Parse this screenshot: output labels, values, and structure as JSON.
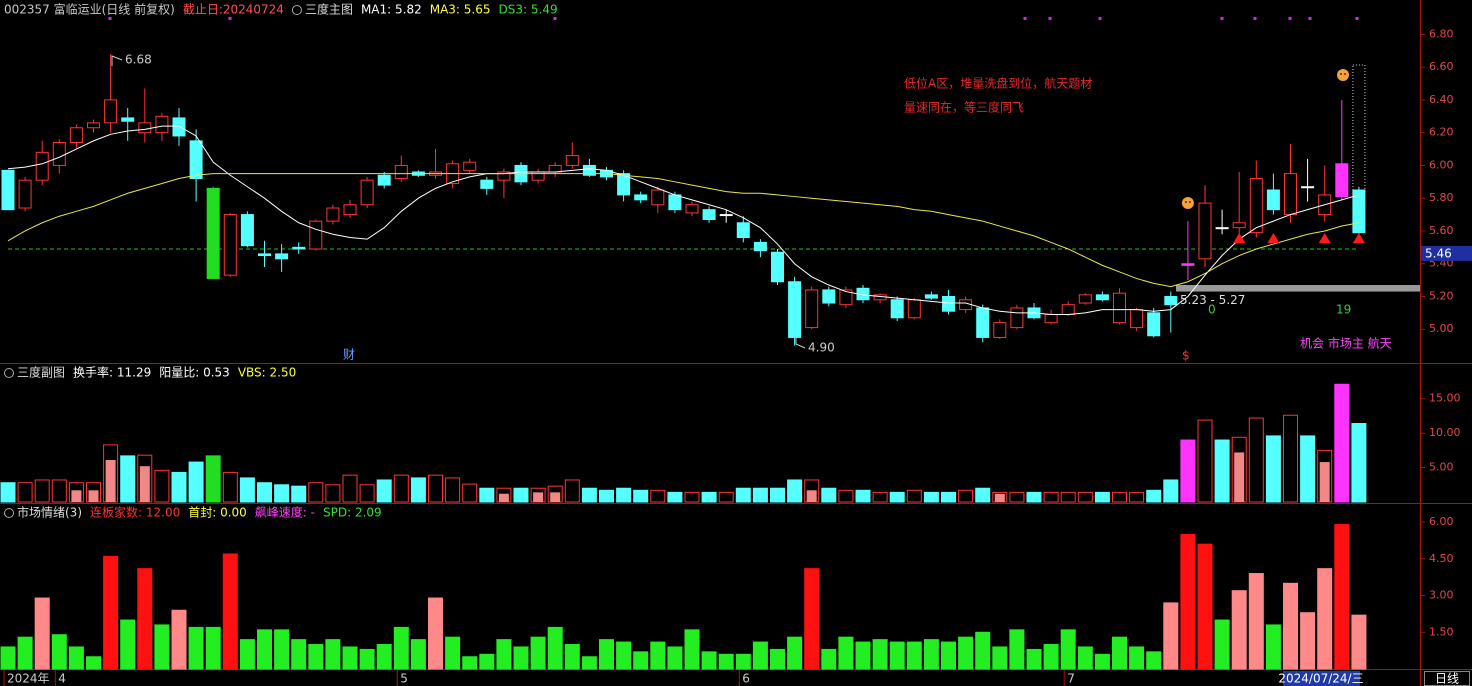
{
  "chart_data": [
    {
      "type": "candlestick",
      "header": [
        {
          "text": "002357 富临运业(日线 前复权)",
          "color": "#c8c8c8"
        },
        {
          "text": "截止日:20240724",
          "color": "#ff5050"
        },
        {
          "text": "三度主图",
          "color": "#dddddd"
        },
        {
          "text": "MA1: 5.82",
          "color": "#ffffff"
        },
        {
          "text": "MA3: 5.65",
          "color": "#ffff30"
        },
        {
          "text": "DS3: 5.49",
          "color": "#30e030"
        }
      ],
      "open": [
        5.97,
        5.74,
        5.91,
        6.0,
        6.14,
        6.23,
        6.26,
        6.29,
        6.2,
        6.2,
        6.29,
        6.15,
        5.86,
        5.33,
        5.7,
        5.46,
        5.46,
        5.5,
        5.49,
        5.66,
        5.7,
        5.76,
        5.94,
        5.92,
        5.96,
        5.94,
        5.89,
        5.97,
        5.91,
        5.91,
        6.0,
        5.91,
        5.96,
        6.0,
        6.0,
        5.97,
        5.95,
        5.82,
        5.76,
        5.82,
        5.71,
        5.73,
        5.7,
        5.65,
        5.53,
        5.47,
        5.29,
        5.01,
        5.24,
        5.15,
        5.25,
        5.18,
        5.18,
        5.07,
        5.21,
        5.2,
        5.12,
        5.13,
        4.95,
        5.01,
        5.13,
        5.04,
        5.09,
        5.16,
        5.21,
        5.04,
        5.01,
        5.1,
        5.2,
        5.39,
        5.43,
        5.62,
        5.62,
        5.59,
        5.85,
        5.7,
        5.87,
        5.7,
        5.81,
        5.85
      ],
      "high": [
        5.97,
        5.93,
        6.15,
        6.16,
        6.25,
        6.28,
        6.68,
        6.35,
        6.47,
        6.32,
        6.35,
        6.22,
        5.87,
        5.71,
        5.72,
        5.54,
        5.52,
        5.53,
        5.67,
        5.76,
        5.79,
        5.93,
        5.96,
        6.06,
        5.97,
        6.1,
        6.03,
        6.04,
        5.93,
        5.98,
        6.02,
        5.98,
        6.02,
        6.14,
        6.04,
        5.99,
        5.97,
        5.84,
        5.87,
        5.84,
        5.78,
        5.75,
        5.73,
        5.69,
        5.55,
        5.49,
        5.32,
        5.26,
        5.26,
        5.26,
        5.27,
        5.22,
        5.2,
        5.19,
        5.23,
        5.24,
        5.2,
        5.15,
        5.06,
        5.15,
        5.16,
        5.12,
        5.17,
        5.22,
        5.23,
        5.25,
        5.13,
        5.13,
        5.23,
        5.66,
        5.88,
        5.73,
        5.96,
        6.03,
        5.95,
        6.13,
        6.04,
        6.0,
        6.4,
        5.87
      ],
      "low": [
        5.73,
        5.72,
        5.88,
        5.95,
        6.1,
        6.2,
        6.2,
        6.15,
        6.14,
        6.15,
        6.12,
        5.78,
        5.31,
        5.32,
        5.5,
        5.38,
        5.35,
        5.46,
        5.48,
        5.64,
        5.68,
        5.74,
        5.86,
        5.9,
        5.93,
        5.92,
        5.86,
        5.95,
        5.82,
        5.8,
        5.88,
        5.89,
        5.93,
        5.98,
        5.93,
        5.91,
        5.78,
        5.77,
        5.71,
        5.71,
        5.69,
        5.65,
        5.65,
        5.53,
        5.44,
        5.27,
        4.9,
        5.0,
        5.14,
        5.13,
        5.16,
        5.16,
        5.05,
        5.06,
        5.18,
        5.09,
        5.1,
        4.92,
        4.94,
        5.0,
        5.06,
        5.03,
        5.08,
        5.15,
        5.17,
        5.03,
        4.99,
        4.95,
        4.98,
        5.3,
        5.38,
        5.58,
        5.58,
        5.56,
        5.7,
        5.65,
        5.78,
        5.66,
        5.79,
        5.58
      ],
      "close": [
        5.73,
        5.91,
        6.08,
        6.14,
        6.23,
        6.26,
        6.4,
        6.27,
        6.26,
        6.3,
        6.18,
        5.92,
        5.31,
        5.7,
        5.51,
        5.45,
        5.43,
        5.49,
        5.66,
        5.74,
        5.76,
        5.91,
        5.88,
        6.0,
        5.94,
        5.96,
        6.01,
        6.02,
        5.86,
        5.96,
        5.9,
        5.96,
        6.0,
        6.06,
        5.94,
        5.93,
        5.82,
        5.79,
        5.85,
        5.73,
        5.76,
        5.67,
        5.7,
        5.56,
        5.48,
        5.29,
        4.95,
        5.24,
        5.16,
        5.24,
        5.18,
        5.21,
        5.07,
        5.18,
        5.19,
        5.11,
        5.18,
        4.95,
        5.04,
        5.13,
        5.07,
        5.09,
        5.15,
        5.21,
        5.18,
        5.22,
        5.12,
        4.96,
        5.15,
        5.4,
        5.77,
        5.62,
        5.65,
        5.92,
        5.73,
        5.95,
        5.87,
        5.82,
        6.01,
        5.59
      ],
      "colors": [
        "#5ff",
        "#f33",
        "#f33",
        "#f33",
        "#f33",
        "#f33",
        "#f33",
        "#5ff",
        "#f33",
        "#f33",
        "#5ff",
        "#5ff",
        "#2d2",
        "#f33",
        "#5ff",
        "#5ff",
        "#5ff",
        "#5ff",
        "#f33",
        "#f33",
        "#f33",
        "#f33",
        "#5ff",
        "#f33",
        "#5ff",
        "#f33",
        "#f33",
        "#f33",
        "#5ff",
        "#f33",
        "#5ff",
        "#f33",
        "#f33",
        "#f33",
        "#5ff",
        "#5ff",
        "#5ff",
        "#5ff",
        "#f33",
        "#5ff",
        "#f33",
        "#5ff",
        "#fff",
        "#5ff",
        "#5ff",
        "#5ff",
        "#5ff",
        "#f33",
        "#5ff",
        "#f33",
        "#5ff",
        "#f33",
        "#5ff",
        "#f33",
        "#5ff",
        "#5ff",
        "#f33",
        "#5ff",
        "#f33",
        "#f33",
        "#5ff",
        "#f33",
        "#f33",
        "#f33",
        "#5ff",
        "#f33",
        "#f33",
        "#5ff",
        "#5ff",
        "#f3f",
        "#f33",
        "#fff",
        "#f33",
        "#f33",
        "#5ff",
        "#f33",
        "#fff",
        "#f33",
        "#f3f",
        "#5ff"
      ],
      "hollow_color": "#f33",
      "series": [
        {
          "color": "#ffffff",
          "values": [
            5.98,
            5.99,
            6.01,
            6.05,
            6.1,
            6.15,
            6.19,
            6.21,
            6.22,
            6.24,
            6.24,
            6.18,
            6.02,
            5.94,
            5.87,
            5.8,
            5.72,
            5.65,
            5.61,
            5.58,
            5.56,
            5.55,
            5.62,
            5.72,
            5.8,
            5.86,
            5.9,
            5.93,
            5.95,
            5.95,
            5.96,
            5.96,
            5.96,
            5.97,
            5.98,
            5.97,
            5.94,
            5.9,
            5.86,
            5.82,
            5.79,
            5.76,
            5.73,
            5.68,
            5.62,
            5.52,
            5.4,
            5.32,
            5.27,
            5.23,
            5.21,
            5.2,
            5.19,
            5.18,
            5.17,
            5.16,
            5.16,
            5.13,
            5.11,
            5.1,
            5.1,
            5.09,
            5.09,
            5.1,
            5.12,
            5.12,
            5.12,
            5.11,
            5.12,
            5.2,
            5.33,
            5.45,
            5.55,
            5.62,
            5.66,
            5.7,
            5.73,
            5.76,
            5.79,
            5.82
          ]
        },
        {
          "color": "#e8e840",
          "values": [
            5.54,
            5.6,
            5.65,
            5.69,
            5.72,
            5.75,
            5.79,
            5.83,
            5.86,
            5.89,
            5.92,
            5.94,
            5.95,
            5.95,
            5.95,
            5.95,
            5.95,
            5.95,
            5.95,
            5.95,
            5.95,
            5.95,
            5.95,
            5.95,
            5.95,
            5.95,
            5.95,
            5.95,
            5.95,
            5.95,
            5.95,
            5.95,
            5.95,
            5.95,
            5.95,
            5.95,
            5.94,
            5.93,
            5.92,
            5.9,
            5.88,
            5.86,
            5.84,
            5.83,
            5.83,
            5.82,
            5.81,
            5.8,
            5.79,
            5.78,
            5.77,
            5.76,
            5.75,
            5.73,
            5.72,
            5.7,
            5.68,
            5.66,
            5.63,
            5.6,
            5.57,
            5.53,
            5.49,
            5.44,
            5.39,
            5.35,
            5.31,
            5.28,
            5.26,
            5.29,
            5.34,
            5.4,
            5.45,
            5.49,
            5.52,
            5.55,
            5.58,
            5.6,
            5.63,
            5.65
          ]
        }
      ],
      "reference_line": 5.49,
      "reference_color": "#20c020",
      "cursor_price": 5.46,
      "zone": {
        "low": 5.23,
        "high": 5.27,
        "label": "5.23 - 5.27",
        "color": "#9a9a9a"
      },
      "annotations": [
        {
          "text": "6.68",
          "color": "#cccccc"
        },
        {
          "text": "4.90",
          "color": "#cccccc"
        },
        {
          "text": "0",
          "color": "#30d030"
        },
        {
          "text": "19",
          "color": "#30d030"
        },
        {
          "text": "财",
          "color": "#6aa0ff"
        },
        {
          "text": "$",
          "color": "#ff3030"
        },
        {
          "text": "机会 市场主 航天",
          "color": "#ff40ff"
        }
      ],
      "note": [
        "低位A区，堆量洗盘到位，航天题材",
        "量速同在，等三度同飞"
      ],
      "note_color": "#e62828",
      "ylim": [
        4.8,
        7.01
      ],
      "yticks": [
        {
          "value": 5.0,
          "label": "5.00"
        },
        {
          "value": 5.2,
          "label": "5.20"
        },
        {
          "value": 5.4,
          "label": "5.40"
        },
        {
          "value": 5.6,
          "label": "5.60"
        },
        {
          "value": 5.8,
          "label": "5.80"
        },
        {
          "value": 6.0,
          "label": "6.00"
        },
        {
          "value": 6.2,
          "label": "6.20"
        },
        {
          "value": 6.4,
          "label": "6.40"
        },
        {
          "value": 6.6,
          "label": "6.60"
        },
        {
          "value": 6.8,
          "label": "6.80"
        }
      ]
    },
    {
      "type": "bar",
      "header": [
        {
          "text": "三度副图",
          "color": "#dddddd"
        },
        {
          "text": "换手率: 11.29",
          "color": "#ffffff"
        },
        {
          "text": "阳量比: 0.53",
          "color": "#ffffff"
        },
        {
          "text": "VBS: 2.50",
          "color": "#ffff30"
        }
      ],
      "values": [
        2.8,
        2.8,
        3.2,
        3.2,
        2.8,
        2.8,
        8.3,
        6.7,
        6.8,
        4.6,
        4.3,
        5.8,
        6.7,
        4.3,
        3.5,
        2.8,
        2.5,
        2.3,
        2.8,
        2.5,
        3.9,
        2.5,
        3.2,
        3.9,
        3.5,
        3.9,
        3.5,
        2.6,
        2.0,
        2.0,
        2.0,
        2.0,
        2.3,
        3.2,
        2.0,
        1.7,
        2.0,
        1.7,
        1.7,
        1.4,
        1.4,
        1.4,
        1.4,
        2.0,
        2.0,
        2.0,
        3.2,
        3.2,
        2.0,
        1.7,
        1.7,
        1.4,
        1.4,
        1.7,
        1.4,
        1.4,
        1.7,
        2.0,
        1.4,
        1.4,
        1.4,
        1.4,
        1.4,
        1.4,
        1.4,
        1.4,
        1.4,
        1.7,
        3.2,
        9.0,
        11.9,
        9.0,
        9.4,
        12.2,
        9.6,
        12.6,
        9.6,
        7.5,
        17.1,
        11.4
      ],
      "inner_values": [
        null,
        null,
        null,
        null,
        1.7,
        1.7,
        6.1,
        null,
        5.2,
        null,
        null,
        null,
        null,
        null,
        null,
        null,
        null,
        null,
        null,
        null,
        null,
        null,
        null,
        null,
        null,
        null,
        null,
        null,
        null,
        1.2,
        null,
        1.4,
        1.4,
        null,
        null,
        null,
        null,
        null,
        null,
        null,
        null,
        null,
        null,
        null,
        null,
        null,
        null,
        1.7,
        null,
        null,
        null,
        null,
        null,
        null,
        null,
        null,
        null,
        null,
        1.2,
        null,
        null,
        null,
        null,
        null,
        null,
        null,
        null,
        null,
        null,
        null,
        null,
        null,
        7.2,
        null,
        null,
        null,
        null,
        5.8,
        null,
        null
      ],
      "inner_color": "#f08888",
      "colors": [
        "#5ff",
        "#f33",
        "#f33",
        "#f33",
        "#f33",
        "#f33",
        "#f33",
        "#5ff",
        "#f33",
        "#f33",
        "#5ff",
        "#5ff",
        "#2d2",
        "#f33",
        "#5ff",
        "#5ff",
        "#5ff",
        "#5ff",
        "#f33",
        "#f33",
        "#f33",
        "#f33",
        "#5ff",
        "#f33",
        "#5ff",
        "#f33",
        "#f33",
        "#f33",
        "#5ff",
        "#f33",
        "#5ff",
        "#f33",
        "#f33",
        "#f33",
        "#5ff",
        "#5ff",
        "#5ff",
        "#5ff",
        "#f33",
        "#5ff",
        "#f33",
        "#5ff",
        "#f33",
        "#5ff",
        "#5ff",
        "#5ff",
        "#5ff",
        "#f33",
        "#5ff",
        "#f33",
        "#5ff",
        "#f33",
        "#5ff",
        "#f33",
        "#5ff",
        "#5ff",
        "#f33",
        "#5ff",
        "#f33",
        "#f33",
        "#5ff",
        "#f33",
        "#f33",
        "#f33",
        "#5ff",
        "#f33",
        "#f33",
        "#5ff",
        "#5ff",
        "#f3f",
        "#f33",
        "#5ff",
        "#f33",
        "#f33",
        "#5ff",
        "#f33",
        "#5ff",
        "#f33",
        "#f3f",
        "#5ff"
      ],
      "hollow_color": "#f33",
      "ylim": [
        0,
        19.9
      ],
      "yticks": [
        {
          "value": 5,
          "label": "5.00"
        },
        {
          "value": 10,
          "label": "10.00"
        },
        {
          "value": 15,
          "label": "15.00"
        }
      ]
    },
    {
      "type": "bar",
      "header": [
        {
          "text": "市场情绪(3)",
          "color": "#dddddd"
        },
        {
          "text": "连板家数: 12.00",
          "color": "#ff3030"
        },
        {
          "text": "首封: 0.00",
          "color": "#ffff30"
        },
        {
          "text": "飙峰速度: -",
          "color": "#ff40ff"
        },
        {
          "text": "SPD: 2.09",
          "color": "#30e030"
        }
      ],
      "values": [
        0.9,
        1.3,
        2.9,
        1.4,
        0.9,
        0.5,
        4.6,
        2.0,
        4.1,
        1.8,
        2.4,
        1.7,
        1.7,
        4.7,
        1.2,
        1.6,
        1.6,
        1.2,
        1.0,
        1.2,
        0.9,
        0.8,
        1.0,
        1.7,
        1.2,
        2.9,
        1.3,
        0.5,
        0.6,
        1.2,
        0.9,
        1.3,
        1.7,
        1.0,
        0.5,
        1.2,
        1.1,
        0.7,
        1.1,
        0.9,
        1.6,
        0.7,
        0.6,
        0.6,
        1.1,
        0.8,
        1.3,
        4.1,
        0.8,
        1.3,
        1.1,
        1.2,
        1.1,
        1.1,
        1.2,
        1.1,
        1.3,
        1.5,
        0.9,
        1.6,
        0.8,
        1.0,
        1.6,
        0.9,
        0.6,
        1.3,
        0.9,
        0.7,
        2.7,
        5.5,
        5.1,
        2.0,
        3.2,
        3.9,
        1.8,
        3.5,
        2.3,
        4.1,
        5.9,
        2.2
      ],
      "colors": [
        "#2e2",
        "#2e2",
        "#f88",
        "#2e2",
        "#2e2",
        "#2e2",
        "#f11",
        "#2e2",
        "#f11",
        "#2e2",
        "#f88",
        "#2e2",
        "#2e2",
        "#f11",
        "#2e2",
        "#2e2",
        "#2e2",
        "#2e2",
        "#2e2",
        "#2e2",
        "#2e2",
        "#2e2",
        "#2e2",
        "#2e2",
        "#2e2",
        "#f88",
        "#2e2",
        "#2e2",
        "#2e2",
        "#2e2",
        "#2e2",
        "#2e2",
        "#2e2",
        "#2e2",
        "#2e2",
        "#2e2",
        "#2e2",
        "#2e2",
        "#2e2",
        "#2e2",
        "#2e2",
        "#2e2",
        "#2e2",
        "#2e2",
        "#2e2",
        "#2e2",
        "#2e2",
        "#f11",
        "#2e2",
        "#2e2",
        "#2e2",
        "#2e2",
        "#2e2",
        "#2e2",
        "#2e2",
        "#2e2",
        "#2e2",
        "#2e2",
        "#2e2",
        "#2e2",
        "#2e2",
        "#2e2",
        "#2e2",
        "#2e2",
        "#2e2",
        "#2e2",
        "#2e2",
        "#2e2",
        "#f88",
        "#f11",
        "#f11",
        "#2e2",
        "#f88",
        "#f88",
        "#2e2",
        "#f88",
        "#f88",
        "#f88",
        "#f11",
        "#f88"
      ],
      "categories": [
        "2024年",
        null,
        null,
        "4",
        null,
        null,
        null,
        null,
        null,
        null,
        null,
        null,
        null,
        null,
        null,
        null,
        null,
        null,
        null,
        null,
        null,
        null,
        null,
        "5",
        null,
        null,
        null,
        null,
        null,
        null,
        null,
        null,
        null,
        null,
        null,
        null,
        null,
        null,
        null,
        null,
        null,
        null,
        null,
        "6",
        null,
        null,
        null,
        null,
        null,
        null,
        null,
        null,
        null,
        null,
        null,
        null,
        null,
        null,
        null,
        null,
        null,
        null,
        "7",
        null,
        null,
        null,
        null,
        null,
        null,
        null,
        null,
        null,
        null,
        null,
        null,
        null,
        null,
        null,
        null,
        null
      ],
      "cursor_date": "2024/07/24/三",
      "period": "日线",
      "ylim": [
        0,
        6.7
      ],
      "yticks": [
        {
          "value": 1.5,
          "label": "1.50"
        },
        {
          "value": 3,
          "label": "3.00"
        },
        {
          "value": 4.5,
          "label": "4.50"
        },
        {
          "value": 6,
          "label": "6.00"
        }
      ]
    }
  ]
}
